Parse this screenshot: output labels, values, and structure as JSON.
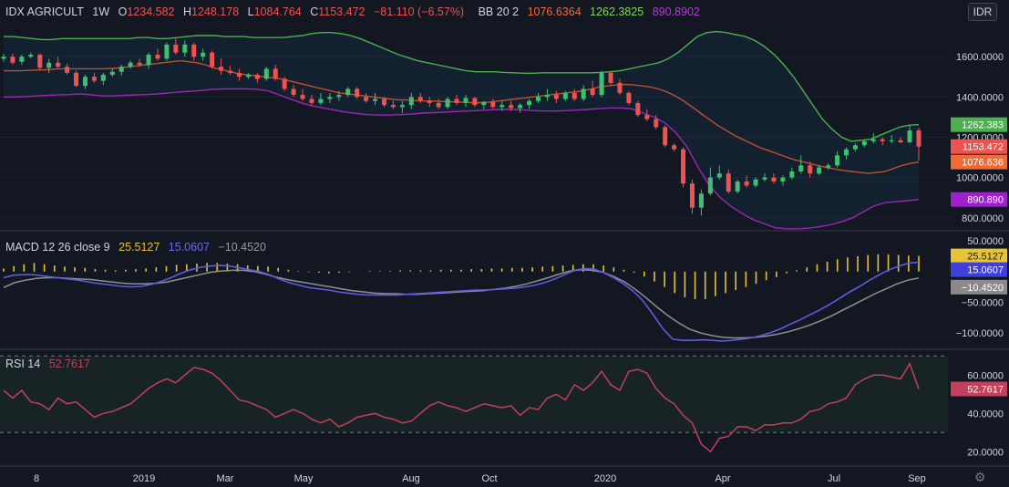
{
  "header": {
    "symbol": "IDX AGRICULT",
    "interval": "1W",
    "open_label": "O",
    "open": "1234.582",
    "high_label": "H",
    "high": "1248.178",
    "low_label": "L",
    "low": "1084.764",
    "close_label": "C",
    "close": "1153.472",
    "change": "−81.110 (−6.57%)",
    "bb_label": "BB 20 2",
    "bb_basis": "1076.6364",
    "bb_upper": "1262.3825",
    "bb_lower": "890.8902"
  },
  "currency": "IDR",
  "macd_header": {
    "label": "MACD 12 26 close 9",
    "hist": "25.5127",
    "macd": "15.0607",
    "signal": "−10.4520"
  },
  "rsi_header": {
    "label": "RSI 14",
    "value": "52.7617"
  },
  "colors": {
    "background": "#131722",
    "up": "#26a69a",
    "up_candle": "#3fbf6f",
    "down": "#ef5350",
    "bb_upper": "#4caf50",
    "bb_lower": "#9c27b0",
    "bb_basis": "#c1502e",
    "macd": "#5c5ce0",
    "signal": "#909090",
    "hist": "#e6c337",
    "rsi": "#c2405a"
  },
  "chart_data": [
    {
      "type": "candlestick",
      "name": "price",
      "x_labels": [
        "8",
        "2019",
        "Mar",
        "May",
        "Aug",
        "Oct",
        "2020",
        "Apr",
        "Jul",
        "Sep"
      ],
      "y_ticks": [
        800,
        1000,
        1200,
        1400,
        1600
      ],
      "y_tick_labels": [
        "800.0000",
        "1000.0000",
        "1200.0000",
        "1400.0000",
        "1600.0000"
      ],
      "ylim": [
        740,
        1800
      ],
      "price_labels": {
        "upper": "1262.383",
        "close": "1153.472",
        "basis": "1076.636",
        "lower": "890.890"
      },
      "candles": [
        [
          1590,
          1615,
          1575,
          1600
        ],
        [
          1600,
          1615,
          1560,
          1570
        ],
        [
          1575,
          1610,
          1560,
          1600
        ],
        [
          1600,
          1620,
          1590,
          1610
        ],
        [
          1610,
          1615,
          1530,
          1545
        ],
        [
          1545,
          1590,
          1520,
          1570
        ],
        [
          1570,
          1600,
          1540,
          1550
        ],
        [
          1550,
          1565,
          1510,
          1520
        ],
        [
          1520,
          1530,
          1450,
          1455
        ],
        [
          1455,
          1510,
          1440,
          1500
        ],
        [
          1500,
          1520,
          1470,
          1480
        ],
        [
          1480,
          1520,
          1460,
          1510
        ],
        [
          1510,
          1540,
          1500,
          1525
        ],
        [
          1525,
          1560,
          1505,
          1550
        ],
        [
          1550,
          1580,
          1540,
          1570
        ],
        [
          1570,
          1590,
          1550,
          1560
        ],
        [
          1560,
          1620,
          1540,
          1610
        ],
        [
          1610,
          1640,
          1580,
          1590
        ],
        [
          1590,
          1670,
          1580,
          1660
        ],
        [
          1660,
          1690,
          1610,
          1620
        ],
        [
          1620,
          1680,
          1600,
          1660
        ],
        [
          1660,
          1670,
          1580,
          1600
        ],
        [
          1600,
          1640,
          1580,
          1620
        ],
        [
          1620,
          1630,
          1540,
          1550
        ],
        [
          1550,
          1590,
          1510,
          1530
        ],
        [
          1530,
          1555,
          1510,
          1520
        ],
        [
          1520,
          1540,
          1480,
          1500
        ],
        [
          1500,
          1520,
          1490,
          1510
        ],
        [
          1510,
          1520,
          1470,
          1490
        ],
        [
          1490,
          1550,
          1480,
          1540
        ],
        [
          1540,
          1560,
          1480,
          1490
        ],
        [
          1490,
          1500,
          1430,
          1440
        ],
        [
          1440,
          1460,
          1400,
          1410
        ],
        [
          1410,
          1440,
          1380,
          1390
        ],
        [
          1390,
          1410,
          1360,
          1370
        ],
        [
          1370,
          1420,
          1360,
          1390
        ],
        [
          1390,
          1420,
          1370,
          1400
        ],
        [
          1400,
          1430,
          1380,
          1410
        ],
        [
          1410,
          1450,
          1400,
          1440
        ],
        [
          1440,
          1450,
          1390,
          1400
        ],
        [
          1400,
          1420,
          1370,
          1380
        ],
        [
          1380,
          1420,
          1360,
          1390
        ],
        [
          1390,
          1400,
          1350,
          1360
        ],
        [
          1360,
          1380,
          1340,
          1350
        ],
        [
          1350,
          1380,
          1320,
          1360
        ],
        [
          1360,
          1420,
          1340,
          1400
        ],
        [
          1400,
          1420,
          1370,
          1380
        ],
        [
          1380,
          1400,
          1350,
          1370
        ],
        [
          1370,
          1390,
          1340,
          1350
        ],
        [
          1350,
          1400,
          1340,
          1390
        ],
        [
          1390,
          1410,
          1360,
          1370
        ],
        [
          1370,
          1410,
          1350,
          1395
        ],
        [
          1395,
          1400,
          1350,
          1360
        ],
        [
          1360,
          1380,
          1340,
          1375
        ],
        [
          1375,
          1390,
          1340,
          1350
        ],
        [
          1350,
          1380,
          1330,
          1360
        ],
        [
          1360,
          1380,
          1330,
          1345
        ],
        [
          1345,
          1370,
          1320,
          1360
        ],
        [
          1360,
          1390,
          1340,
          1380
        ],
        [
          1380,
          1420,
          1370,
          1400
        ],
        [
          1400,
          1440,
          1380,
          1410
        ],
        [
          1410,
          1430,
          1370,
          1390
        ],
        [
          1390,
          1430,
          1380,
          1420
        ],
        [
          1420,
          1440,
          1380,
          1390
        ],
        [
          1390,
          1460,
          1380,
          1440
        ],
        [
          1440,
          1480,
          1400,
          1410
        ],
        [
          1410,
          1530,
          1400,
          1520
        ],
        [
          1520,
          1530,
          1460,
          1470
        ],
        [
          1470,
          1490,
          1410,
          1420
        ],
        [
          1420,
          1430,
          1360,
          1370
        ],
        [
          1370,
          1380,
          1300,
          1310
        ],
        [
          1310,
          1340,
          1280,
          1290
        ],
        [
          1290,
          1310,
          1240,
          1250
        ],
        [
          1250,
          1260,
          1150,
          1160
        ],
        [
          1160,
          1170,
          1130,
          1140
        ],
        [
          1140,
          1150,
          950,
          970
        ],
        [
          970,
          990,
          820,
          850
        ],
        [
          850,
          940,
          810,
          920
        ],
        [
          920,
          1050,
          910,
          1000
        ],
        [
          1000,
          1060,
          990,
          1020
        ],
        [
          1020,
          1040,
          920,
          930
        ],
        [
          930,
          990,
          920,
          980
        ],
        [
          980,
          1010,
          950,
          960
        ],
        [
          960,
          1000,
          950,
          990
        ],
        [
          990,
          1020,
          980,
          1000
        ],
        [
          1000,
          1020,
          970,
          980
        ],
        [
          980,
          1010,
          960,
          1000
        ],
        [
          1000,
          1050,
          990,
          1030
        ],
        [
          1030,
          1110,
          1020,
          1060
        ],
        [
          1060,
          1080,
          1000,
          1020
        ],
        [
          1020,
          1060,
          1010,
          1050
        ],
        [
          1050,
          1070,
          1040,
          1060
        ],
        [
          1060,
          1130,
          1050,
          1110
        ],
        [
          1110,
          1150,
          1090,
          1140
        ],
        [
          1140,
          1170,
          1130,
          1160
        ],
        [
          1160,
          1190,
          1150,
          1180
        ],
        [
          1180,
          1220,
          1170,
          1190
        ],
        [
          1190,
          1200,
          1160,
          1180
        ],
        [
          1180,
          1210,
          1170,
          1185
        ],
        [
          1185,
          1200,
          1170,
          1175
        ],
        [
          1175,
          1260,
          1170,
          1234
        ],
        [
          1234.582,
          1248.178,
          1084.764,
          1153.472
        ]
      ],
      "bb_upper": [
        1700,
        1700,
        1695,
        1690,
        1685,
        1685,
        1690,
        1690,
        1690,
        1690,
        1690,
        1690,
        1690,
        1690,
        1695,
        1695,
        1690,
        1690,
        1695,
        1700,
        1705,
        1705,
        1705,
        1700,
        1700,
        1700,
        1695,
        1695,
        1695,
        1695,
        1700,
        1705,
        1715,
        1720,
        1720,
        1715,
        1705,
        1690,
        1670,
        1650,
        1630,
        1610,
        1595,
        1580,
        1570,
        1560,
        1550,
        1540,
        1530,
        1525,
        1525,
        1525,
        1522,
        1520,
        1518,
        1518,
        1520,
        1520,
        1520,
        1520,
        1520,
        1520,
        1522,
        1525,
        1530,
        1540,
        1550,
        1560,
        1570,
        1590,
        1620,
        1660,
        1700,
        1720,
        1725,
        1720,
        1710,
        1700,
        1680,
        1650,
        1610,
        1560,
        1500,
        1430,
        1360,
        1290,
        1240,
        1200,
        1180,
        1185,
        1190,
        1210,
        1230,
        1250,
        1260,
        1262.38
      ],
      "bb_basis": [
        1530,
        1530,
        1530,
        1532,
        1534,
        1535,
        1538,
        1540,
        1540,
        1540,
        1540,
        1540,
        1540,
        1542,
        1545,
        1550,
        1555,
        1560,
        1565,
        1570,
        1575,
        1580,
        1575,
        1570,
        1560,
        1545,
        1535,
        1525,
        1515,
        1510,
        1505,
        1500,
        1495,
        1490,
        1480,
        1470,
        1460,
        1450,
        1440,
        1430,
        1420,
        1415,
        1410,
        1405,
        1400,
        1395,
        1390,
        1385,
        1385,
        1382,
        1380,
        1380,
        1378,
        1376,
        1375,
        1373,
        1372,
        1372,
        1375,
        1380,
        1385,
        1390,
        1395,
        1400,
        1405,
        1410,
        1415,
        1420,
        1425,
        1430,
        1440,
        1450,
        1455,
        1460,
        1462,
        1460,
        1455,
        1450,
        1440,
        1425,
        1405,
        1380,
        1350,
        1320,
        1290,
        1260,
        1235,
        1210,
        1190,
        1170,
        1150,
        1135,
        1120,
        1105,
        1090,
        1080,
        1070,
        1060,
        1050,
        1042,
        1035,
        1030,
        1025,
        1020,
        1025,
        1030,
        1045,
        1060,
        1070,
        1076.64
      ],
      "bb_lower": [
        1400,
        1400,
        1402,
        1405,
        1408,
        1410,
        1412,
        1415,
        1410,
        1405,
        1405,
        1408,
        1410,
        1412,
        1415,
        1420,
        1425,
        1428,
        1432,
        1438,
        1440,
        1440,
        1440,
        1438,
        1430,
        1410,
        1390,
        1370,
        1355,
        1345,
        1335,
        1325,
        1318,
        1312,
        1310,
        1310,
        1312,
        1315,
        1320,
        1322,
        1325,
        1328,
        1330,
        1332,
        1335,
        1338,
        1338,
        1336,
        1332,
        1330,
        1330,
        1332,
        1335,
        1338,
        1342,
        1345,
        1345,
        1340,
        1320,
        1300,
        1270,
        1220,
        1150,
        1050,
        960,
        900,
        855,
        820,
        790,
        770,
        750,
        745,
        745,
        748,
        755,
        765,
        780,
        800,
        830,
        860,
        875,
        880,
        885,
        890.89
      ],
      "bb_basis_full_note": "",
      "volume": []
    },
    {
      "type": "line",
      "name": "macd",
      "y_ticks": [
        50,
        0,
        -50,
        -100
      ],
      "y_tick_labels": [
        "50.0000",
        "0.0000",
        "−50.0000",
        "−100.0000"
      ],
      "ylim": [
        -125,
        65
      ],
      "price_labels": {
        "hist": "25.5127",
        "macd": "15.0607",
        "signal": "−10.4520"
      },
      "macd": [
        -10,
        -6,
        -5,
        -5,
        -7,
        -9,
        -11,
        -13,
        -15,
        -18,
        -20,
        -22,
        -24,
        -25,
        -24,
        -21,
        -16,
        -10,
        -3,
        3,
        7,
        9,
        10,
        9,
        6,
        3,
        0,
        -5,
        -12,
        -18,
        -22,
        -26,
        -28,
        -30,
        -33,
        -35,
        -37,
        -38,
        -38,
        -38,
        -38,
        -37,
        -36,
        -35,
        -34,
        -33,
        -32,
        -31,
        -30,
        -30,
        -29,
        -28,
        -27,
        -25,
        -22,
        -18,
        -12,
        -5,
        2,
        5,
        4,
        -2,
        -10,
        -20,
        -32,
        -48,
        -70,
        -93,
        -110,
        -112,
        -112,
        -111,
        -112,
        -113,
        -112,
        -110,
        -108,
        -104,
        -99,
        -93,
        -85,
        -78,
        -70,
        -62,
        -53,
        -43,
        -33,
        -24,
        -14,
        -5,
        3,
        9,
        14,
        15.06
      ],
      "signal": [
        -26,
        -18,
        -14,
        -11,
        -10,
        -10,
        -11,
        -12,
        -13,
        -15,
        -17,
        -19,
        -20,
        -20,
        -19,
        -17,
        -13,
        -9,
        -5,
        -1,
        1,
        2,
        2,
        0,
        -4,
        -9,
        -13,
        -16,
        -19,
        -22,
        -25,
        -28,
        -31,
        -33,
        -35,
        -36,
        -36,
        -37,
        -37,
        -36,
        -35,
        -34,
        -33,
        -32,
        -31,
        -29,
        -27,
        -24,
        -20,
        -15,
        -10,
        -4,
        1,
        3,
        2,
        -1,
        -8,
        -17,
        -29,
        -43,
        -58,
        -72,
        -84,
        -94,
        -100,
        -104,
        -107,
        -108,
        -108,
        -107,
        -105,
        -102,
        -98,
        -93,
        -87,
        -80,
        -72,
        -63,
        -54,
        -45,
        -36,
        -28,
        -20,
        -14,
        -10.45
      ],
      "hist": [
        5,
        9,
        12,
        14,
        12,
        10,
        8,
        7,
        6,
        4,
        3,
        2,
        3,
        4,
        5,
        7,
        9,
        11,
        12,
        13,
        14,
        14,
        13,
        12,
        10,
        9,
        8,
        6,
        3,
        1,
        -1,
        -2,
        -3,
        -2,
        -1,
        0,
        1,
        1,
        1,
        2,
        2,
        2,
        2,
        3,
        3,
        3,
        4,
        4,
        5,
        5,
        6,
        6,
        7,
        8,
        9,
        10,
        11,
        12,
        12,
        10,
        7,
        3,
        -2,
        -8,
        -16,
        -25,
        -35,
        -42,
        -45,
        -45,
        -40,
        -35,
        -30,
        -25,
        -20,
        -14,
        -9,
        -3,
        2,
        7,
        12,
        16,
        20,
        23,
        25,
        27,
        28,
        28,
        27,
        26,
        25.51
      ]
    },
    {
      "type": "line",
      "name": "rsi",
      "y_ticks": [
        60,
        40,
        20
      ],
      "y_tick_labels": [
        "60.0000",
        "40.0000",
        "20.0000"
      ],
      "ylim": [
        13,
        73
      ],
      "bands": [
        70,
        30
      ],
      "price_labels": {
        "rsi": "52.7617"
      },
      "values": [
        52,
        48,
        52,
        46,
        45,
        42,
        48,
        45,
        46,
        42,
        38,
        40,
        41,
        43,
        45,
        49,
        53,
        56,
        58,
        56,
        60,
        64,
        63,
        61,
        57,
        52,
        47,
        46,
        44,
        42,
        38,
        40,
        42,
        40,
        37,
        35,
        37,
        33,
        35,
        38,
        39,
        40,
        38,
        37,
        35,
        36,
        40,
        44,
        46,
        44,
        43,
        41,
        43,
        45,
        44,
        43,
        44,
        39,
        43,
        42,
        48,
        50,
        47,
        55,
        52,
        56,
        62,
        55,
        52,
        62,
        63,
        61,
        53,
        48,
        45,
        39,
        35,
        24,
        20,
        27,
        28,
        33,
        33,
        31,
        34,
        34,
        35,
        35,
        37,
        41,
        42,
        45,
        46,
        48,
        55,
        58,
        60,
        60,
        59,
        58,
        66,
        52.76
      ]
    }
  ]
}
